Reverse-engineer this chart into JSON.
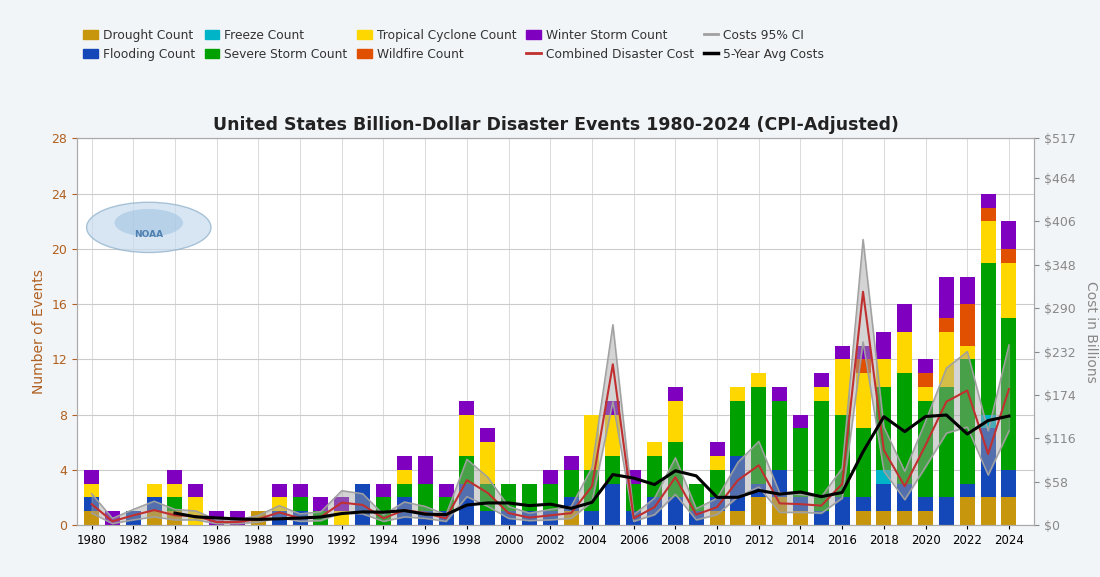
{
  "title": "United States Billion-Dollar Disaster Events 1980-2024 (CPI-Adjusted)",
  "years": [
    1980,
    1981,
    1982,
    1983,
    1984,
    1985,
    1986,
    1987,
    1988,
    1989,
    1990,
    1991,
    1992,
    1993,
    1994,
    1995,
    1996,
    1997,
    1998,
    1999,
    2000,
    2001,
    2002,
    2003,
    2004,
    2005,
    2006,
    2007,
    2008,
    2009,
    2010,
    2011,
    2012,
    2013,
    2014,
    2015,
    2016,
    2017,
    2018,
    2019,
    2020,
    2021,
    2022,
    2023,
    2024
  ],
  "drought": [
    1,
    0,
    0,
    1,
    1,
    0,
    0,
    0,
    1,
    0,
    0,
    0,
    0,
    0,
    0,
    0,
    0,
    0,
    0,
    0,
    0,
    0,
    0,
    1,
    0,
    0,
    0,
    0,
    0,
    0,
    1,
    1,
    2,
    2,
    1,
    0,
    0,
    1,
    1,
    1,
    1,
    0,
    2,
    2,
    2
  ],
  "flooding": [
    1,
    0,
    1,
    1,
    0,
    0,
    0,
    0,
    0,
    1,
    1,
    0,
    0,
    3,
    0,
    2,
    1,
    1,
    3,
    1,
    1,
    1,
    1,
    1,
    1,
    3,
    1,
    2,
    2,
    1,
    1,
    4,
    1,
    2,
    1,
    1,
    2,
    1,
    2,
    2,
    1,
    2,
    1,
    5,
    2
  ],
  "freeze": [
    0,
    0,
    0,
    0,
    0,
    0,
    0,
    0,
    0,
    0,
    0,
    0,
    0,
    0,
    0,
    0,
    0,
    0,
    0,
    0,
    0,
    0,
    0,
    0,
    0,
    0,
    0,
    0,
    0,
    0,
    0,
    0,
    0,
    0,
    0,
    0,
    0,
    0,
    1,
    0,
    0,
    0,
    0,
    1,
    0
  ],
  "severe_storm": [
    0,
    0,
    0,
    0,
    1,
    0,
    0,
    0,
    0,
    0,
    1,
    1,
    0,
    0,
    2,
    1,
    2,
    1,
    2,
    2,
    2,
    2,
    2,
    2,
    3,
    2,
    2,
    3,
    4,
    2,
    2,
    4,
    7,
    5,
    5,
    8,
    6,
    5,
    6,
    8,
    7,
    8,
    9,
    11,
    11
  ],
  "tropical_cyclone": [
    1,
    0,
    0,
    1,
    1,
    2,
    0,
    0,
    0,
    1,
    0,
    0,
    1,
    0,
    0,
    1,
    0,
    0,
    3,
    3,
    0,
    0,
    0,
    0,
    4,
    3,
    0,
    1,
    3,
    0,
    1,
    1,
    1,
    0,
    0,
    1,
    4,
    4,
    2,
    3,
    1,
    4,
    1,
    3,
    4
  ],
  "wildfire": [
    0,
    0,
    0,
    0,
    0,
    0,
    0,
    0,
    0,
    0,
    0,
    0,
    0,
    0,
    0,
    0,
    0,
    0,
    0,
    0,
    0,
    0,
    0,
    0,
    0,
    0,
    0,
    0,
    0,
    0,
    0,
    0,
    0,
    0,
    0,
    0,
    0,
    1,
    0,
    0,
    1,
    1,
    3,
    1,
    1
  ],
  "winter_storm": [
    1,
    1,
    0,
    0,
    1,
    1,
    1,
    1,
    0,
    1,
    1,
    1,
    1,
    0,
    1,
    1,
    2,
    1,
    1,
    1,
    0,
    0,
    1,
    1,
    0,
    1,
    1,
    0,
    1,
    0,
    1,
    0,
    0,
    1,
    1,
    1,
    1,
    1,
    2,
    2,
    1,
    3,
    2,
    1,
    2
  ],
  "cost": [
    28.0,
    5.0,
    13.0,
    20.0,
    13.0,
    12.0,
    4.0,
    4.0,
    8.0,
    17.0,
    9.0,
    11.0,
    30.0,
    27.0,
    9.0,
    20.0,
    16.0,
    9.0,
    60.0,
    43.0,
    16.0,
    10.0,
    13.0,
    16.0,
    52.0,
    215.0,
    9.0,
    24.0,
    64.0,
    14.0,
    24.0,
    60.0,
    80.0,
    29.0,
    28.0,
    26.0,
    55.0,
    312.0,
    100.0,
    52.0,
    107.0,
    165.0,
    180.0,
    95.0,
    182.0
  ],
  "cost_ci_low": [
    16.0,
    2.0,
    7.0,
    11.0,
    7.0,
    7.0,
    2.0,
    2.0,
    4.0,
    10.0,
    5.0,
    6.0,
    17.0,
    15.0,
    5.0,
    11.0,
    9.0,
    5.0,
    38.0,
    25.0,
    9.0,
    6.0,
    7.0,
    9.0,
    31.0,
    165.0,
    5.0,
    14.0,
    41.0,
    7.0,
    14.0,
    38.0,
    51.0,
    17.0,
    17.0,
    16.0,
    36.0,
    245.0,
    72.0,
    34.0,
    78.0,
    123.0,
    131.0,
    67.0,
    126.0
  ],
  "cost_ci_high": [
    42.0,
    9.0,
    21.0,
    32.0,
    21.0,
    19.0,
    7.0,
    7.0,
    13.0,
    26.0,
    15.0,
    18.0,
    46.0,
    42.0,
    14.0,
    31.0,
    25.0,
    14.0,
    88.0,
    64.0,
    25.0,
    16.0,
    21.0,
    25.0,
    77.0,
    268.0,
    14.0,
    36.0,
    90.0,
    22.0,
    36.0,
    84.0,
    112.0,
    43.0,
    41.0,
    38.0,
    76.0,
    382.0,
    131.0,
    72.0,
    139.0,
    210.0,
    232.0,
    126.0,
    241.0
  ],
  "avg5": [
    null,
    null,
    null,
    null,
    16.0,
    11.0,
    9.6,
    8.2,
    7.6,
    8.4,
    9.4,
    10.8,
    15.4,
    17.6,
    17.2,
    19.4,
    14.6,
    14.0,
    26.8,
    29.6,
    29.6,
    26.0,
    28.0,
    22.4,
    30.4,
    67.6,
    62.8,
    54.2,
    72.6,
    65.8,
    37.0,
    37.2,
    46.4,
    41.4,
    44.2,
    38.0,
    43.6,
    98.0,
    145.0,
    125.0,
    145.2,
    147.2,
    121.8,
    139.8,
    145.8
  ],
  "left_yticks": [
    0,
    4,
    8,
    12,
    16,
    20,
    24,
    28
  ],
  "right_yticks": [
    0,
    58,
    116,
    174,
    232,
    290,
    348,
    406,
    464,
    517
  ],
  "right_ylabels": [
    "$0",
    "$58",
    "$116",
    "$174",
    "$232",
    "$290",
    "$348",
    "$406",
    "$464",
    "$517"
  ],
  "ylabel_left": "Number of Events",
  "ylabel_right": "Cost in Billions",
  "color_drought": "#C8960C",
  "color_flooding": "#1448B8",
  "color_freeze": "#00B4C8",
  "color_severe_storm": "#00A000",
  "color_tropical_cyclone": "#FFD700",
  "color_wildfire": "#E05000",
  "color_winter_storm": "#8000C0",
  "color_cost_line": "#C03030",
  "color_ci": "#A0A0A0",
  "color_avg": "#000000",
  "bg_color": "#F2F5F8",
  "plot_bg": "#FFFFFF",
  "axis_label_color": "#B06020",
  "grid_color": "#CCCCCC"
}
